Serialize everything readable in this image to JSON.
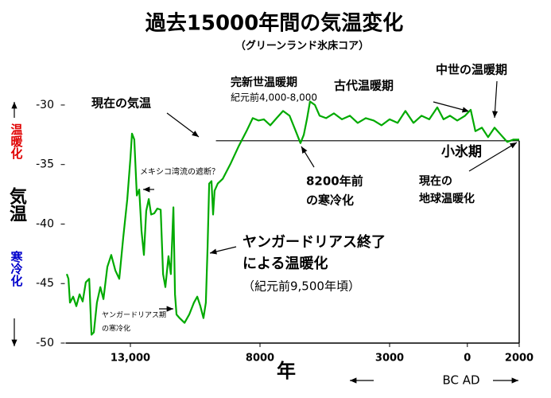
{
  "chart_data": {
    "type": "line",
    "title": "過去15000年間の気温変化",
    "subtitle": "（グリーンランド氷床コア）",
    "y_label": "気温",
    "warm_label": "温暖化",
    "cold_label": "寒冷化",
    "x_label": "年",
    "era_label": "BC AD",
    "xlim": [
      -15500,
      2000
    ],
    "xticks": [
      {
        "value": -13000,
        "label": "13,000"
      },
      {
        "value": -8000,
        "label": "8000"
      },
      {
        "value": -3000,
        "label": "3000"
      },
      0,
      2000
    ],
    "ylim": [
      -50,
      -28.8
    ],
    "yticks": [
      -30,
      -35,
      -40,
      -45,
      -50
    ],
    "reference_line": -33.0,
    "series": [
      {
        "name": "気温",
        "color": "#00aa00",
        "x": [
          -15454,
          -15390,
          -15330,
          -15210,
          -15085,
          -14960,
          -14840,
          -14720,
          -14590,
          -14500,
          -14410,
          -14290,
          -14160,
          -14040,
          -13890,
          -13740,
          -13580,
          -13430,
          -13280,
          -13120,
          -13000,
          -12940,
          -12850,
          -12750,
          -12660,
          -12570,
          -12480,
          -12390,
          -12290,
          -12200,
          -12080,
          -11960,
          -11830,
          -11740,
          -11650,
          -11530,
          -11440,
          -11340,
          -11280,
          -11220,
          -11100,
          -10910,
          -10730,
          -10550,
          -10420,
          -10300,
          -10180,
          -10090,
          -10020,
          -9960,
          -9870,
          -9810,
          -9750,
          -9630,
          -9440,
          -9130,
          -8830,
          -8520,
          -8280,
          -8060,
          -7850,
          -7600,
          -7360,
          -7110,
          -6860,
          -6620,
          -6440,
          -6310,
          -6190,
          -6070,
          -5880,
          -5700,
          -5450,
          -5150,
          -4840,
          -4530,
          -4230,
          -3920,
          -3610,
          -3310,
          -3000,
          -2690,
          -2390,
          -2080,
          -1770,
          -1470,
          -1160,
          -920,
          -670,
          -390,
          -90,
          130,
          310,
          560,
          800,
          1050,
          1290,
          1540,
          1780,
          2000
        ],
        "values": [
          -44.2,
          -44.6,
          -46.6,
          -46.1,
          -46.9,
          -45.9,
          -46.5,
          -44.9,
          -44.6,
          -49.3,
          -49.1,
          -46.6,
          -45.3,
          -46.3,
          -43.6,
          -42.6,
          -43.9,
          -44.6,
          -41.2,
          -37.9,
          -34.5,
          -32.4,
          -32.9,
          -37.6,
          -37.1,
          -40.6,
          -42.6,
          -38.9,
          -37.9,
          -39.2,
          -39.1,
          -38.7,
          -38.8,
          -44.2,
          -45.3,
          -42.7,
          -44.2,
          -38.6,
          -45.9,
          -47.6,
          -47.9,
          -48.3,
          -47.6,
          -46.6,
          -46.1,
          -46.9,
          -47.9,
          -46.6,
          -41.9,
          -36.6,
          -36.4,
          -39.2,
          -37.2,
          -36.6,
          -36.2,
          -34.9,
          -33.5,
          -32.2,
          -31.1,
          -31.3,
          -31.2,
          -31.7,
          -31.1,
          -30.5,
          -30.9,
          -32.2,
          -33.2,
          -32.5,
          -31.2,
          -29.7,
          -30.0,
          -30.9,
          -31.1,
          -30.7,
          -31.2,
          -30.9,
          -31.5,
          -31.1,
          -31.3,
          -31.7,
          -31.2,
          -31.5,
          -30.5,
          -31.5,
          -30.9,
          -31.2,
          -30.2,
          -31.2,
          -30.9,
          -31.3,
          -30.9,
          -30.4,
          -32.2,
          -31.9,
          -32.7,
          -31.9,
          -32.5,
          -33.1,
          -32.9,
          -32.9
        ]
      }
    ],
    "annotations": [
      "現在の気温",
      "完新世温暖期",
      "紀元前4,000-8,000",
      "古代温暖期",
      "中世の温暖期",
      "小氷期",
      "8200年前",
      "の寒冷化",
      "現在の",
      "地球温暖化",
      "メキシコ湾流の遮断？",
      "ヤンガードリアス終了",
      "による温暖化",
      "（紀元前9,500年頃）",
      "ヤンガードリアス期",
      "の寒冷化"
    ]
  }
}
